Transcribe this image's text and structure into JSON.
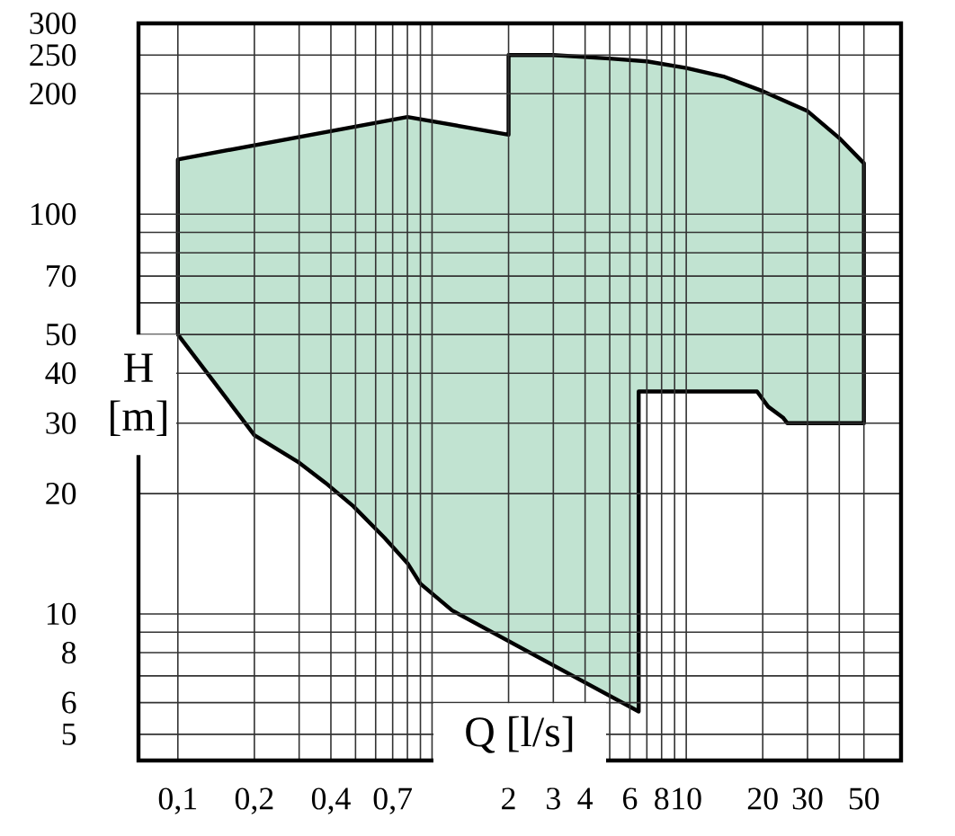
{
  "chart_data": {
    "type": "area",
    "xlabel": "Q [l/s]",
    "ylabel": "H [m]",
    "x": [
      0.1,
      0.1,
      0.8,
      2,
      2,
      3,
      5,
      7,
      10,
      14,
      20,
      30,
      40,
      50,
      50,
      25,
      24,
      21,
      19,
      6.5,
      6.5,
      1.2,
      0.9,
      0.8,
      0.65,
      0.49,
      0.38,
      0.3,
      0.2
    ],
    "series": [
      {
        "color": "#c1e3d1",
        "values": [
          50,
          137,
          175,
          158,
          250,
          250,
          245,
          241,
          232,
          221,
          203,
          181,
          155,
          134,
          30,
          30,
          31,
          33,
          36,
          36,
          5.7,
          10.2,
          11.9,
          13.4,
          15.5,
          18.6,
          21.3,
          23.9,
          28
        ]
      }
    ],
    "log": "xy",
    "xlim": [
      0.07,
      70
    ],
    "ylim": [
      4.3,
      300
    ],
    "xticks": [
      {
        "value": 0.1,
        "label": "0,1"
      },
      {
        "value": 0.2,
        "label": "0,2"
      },
      {
        "value": 0.3,
        "label": null
      },
      {
        "value": 0.4,
        "label": "0,4"
      },
      {
        "value": 0.5,
        "label": null
      },
      {
        "value": 0.6,
        "label": null
      },
      {
        "value": 0.7,
        "label": "0,7"
      },
      {
        "value": 0.8,
        "label": null
      },
      {
        "value": 0.9,
        "label": null
      },
      {
        "value": 1,
        "label": null
      },
      2,
      3,
      4,
      {
        "value": 5,
        "label": null
      },
      6,
      {
        "value": 7,
        "label": null
      },
      8,
      {
        "value": 9,
        "label": null
      },
      10,
      20,
      30,
      {
        "value": 40,
        "label": null
      },
      50
    ],
    "yticks": [
      5,
      6,
      {
        "value": 7,
        "label": null
      },
      8,
      {
        "value": 9,
        "label": null
      },
      10,
      20,
      30,
      40,
      50,
      {
        "value": 60,
        "label": null
      },
      70,
      {
        "value": 80,
        "label": null
      },
      {
        "value": 90,
        "label": null
      },
      100,
      200,
      250,
      300
    ],
    "grid": true
  }
}
